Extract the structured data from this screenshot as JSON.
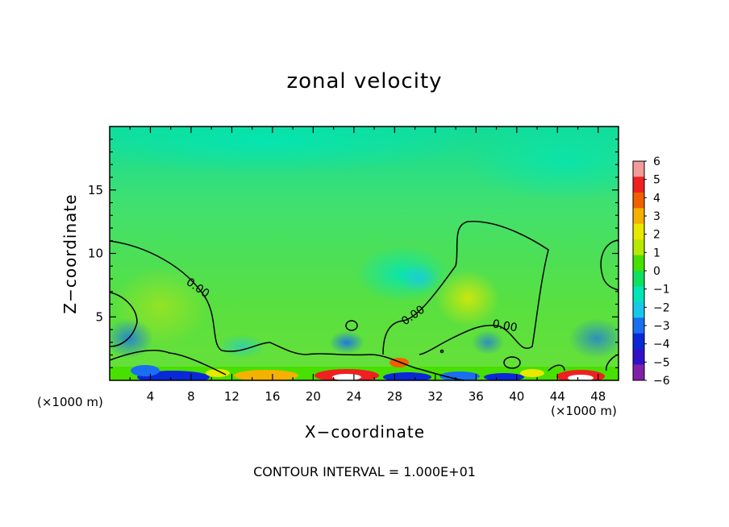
{
  "chart_data": {
    "type": "heatmap",
    "title": "zonal velocity",
    "xlabel": "X−coordinate",
    "ylabel": "Z−coordinate",
    "x_unit_left": "(×1000 m)",
    "x_unit_right": "(×1000 m)",
    "xlim": [
      0,
      50
    ],
    "ylim": [
      0,
      20
    ],
    "x_ticks": [
      "4",
      "8",
      "12",
      "16",
      "20",
      "24",
      "28",
      "32",
      "36",
      "40",
      "44",
      "48"
    ],
    "y_ticks": [
      "5",
      "10",
      "15"
    ],
    "colorbar": {
      "ticks": [
        "6",
        "5",
        "4",
        "3",
        "2",
        "1",
        "0",
        "−1",
        "−2",
        "−3",
        "−4",
        "−5",
        "−6"
      ],
      "colors": [
        "#f59a9a",
        "#f02020",
        "#f06000",
        "#f5b000",
        "#e8e800",
        "#b8e800",
        "#48e000",
        "#10e060",
        "#00e6b8",
        "#18c8e8",
        "#1a6ef0",
        "#0a28d8",
        "#3010c8",
        "#8020a8"
      ]
    },
    "contour_labels": [
      "0.00",
      "0.00",
      "0.00"
    ],
    "footer": "CONTOUR INTERVAL = 1.000E+01"
  }
}
